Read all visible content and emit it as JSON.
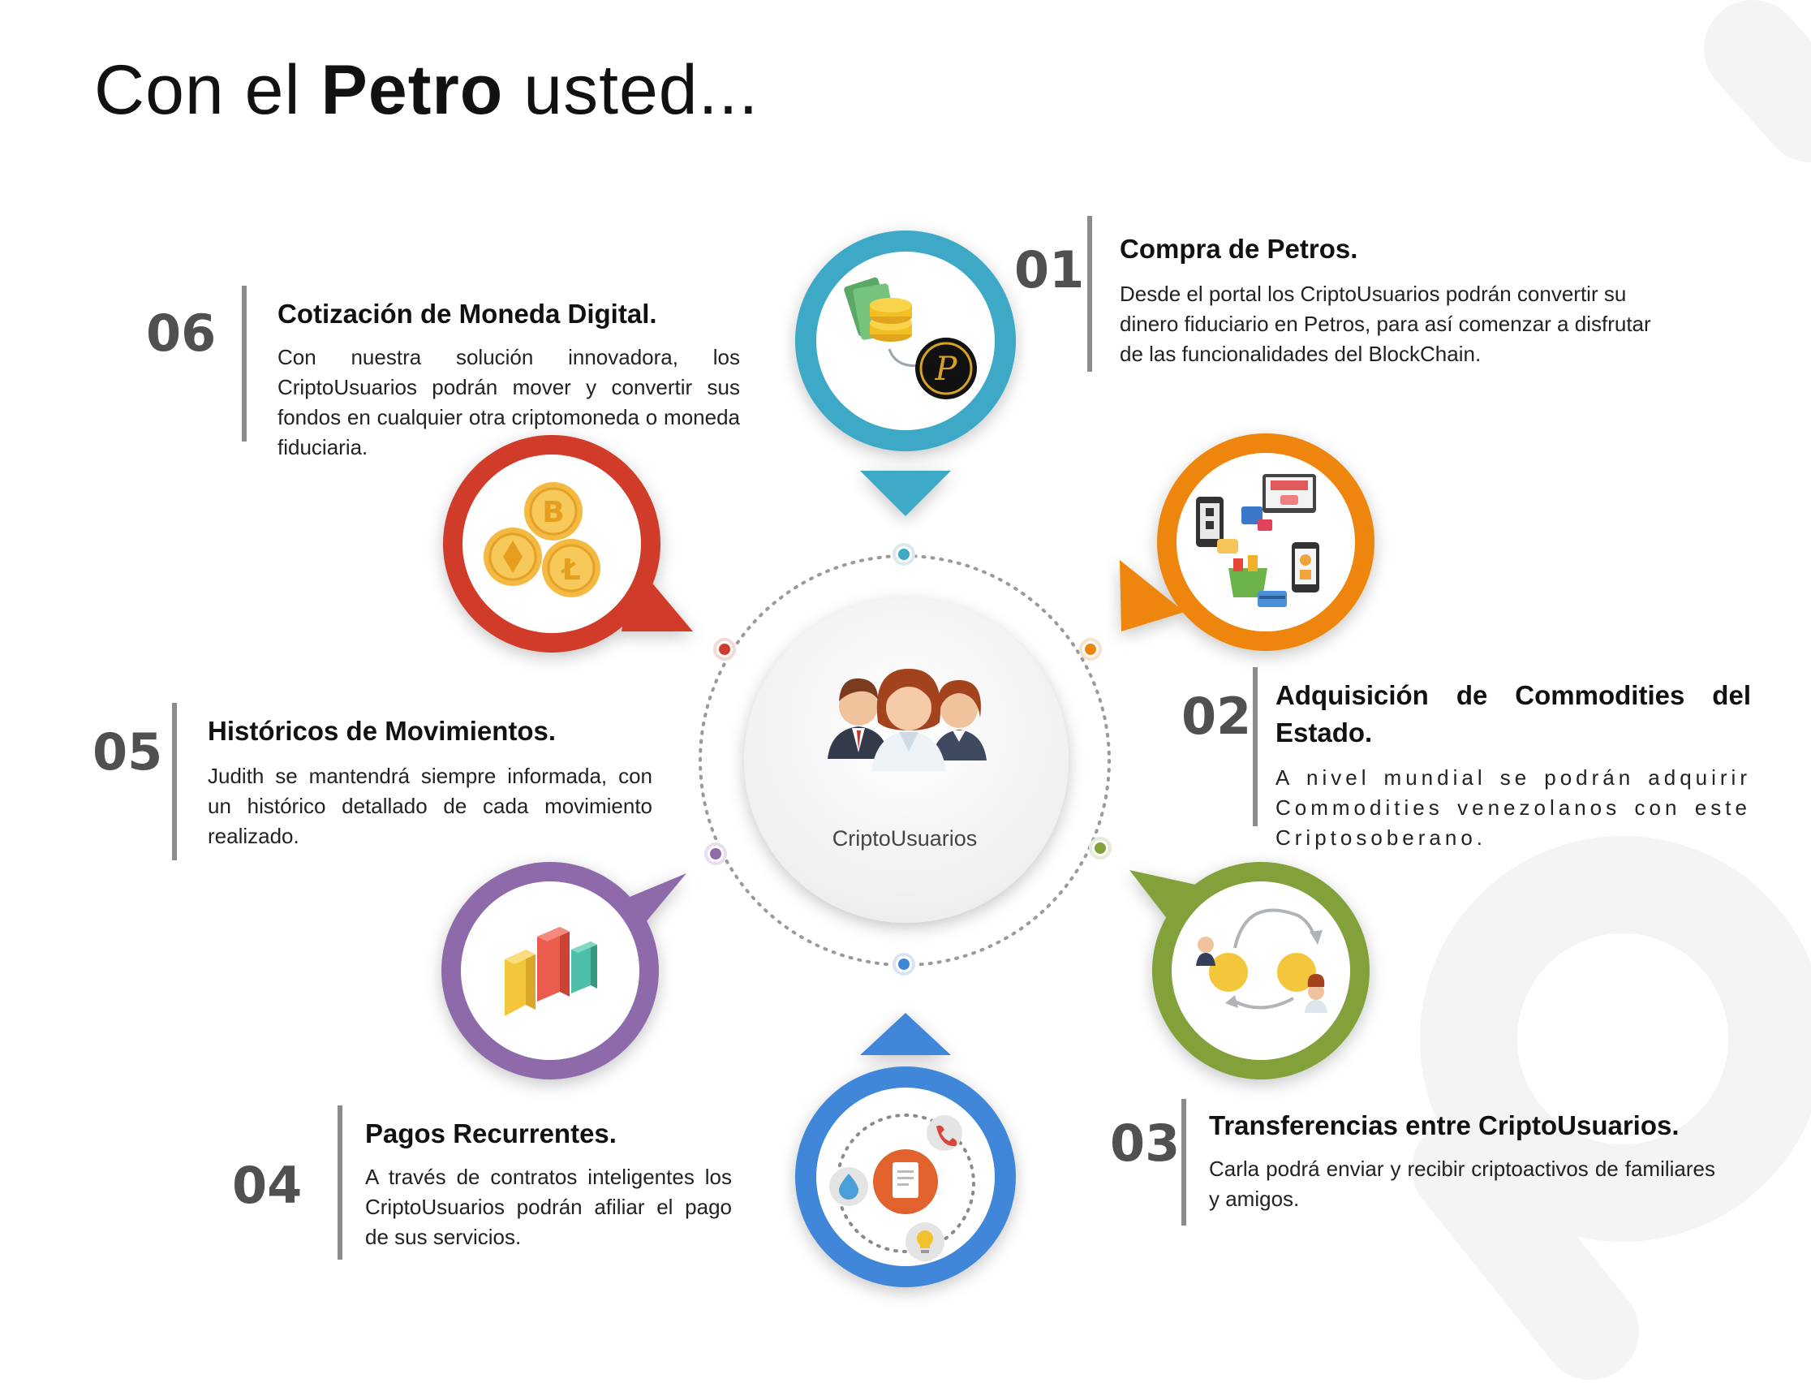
{
  "title": {
    "pre": "Con el ",
    "bold": "Petro",
    "post": " usted..."
  },
  "center": {
    "label": "CriptoUsuarios",
    "icon": "users-group-icon"
  },
  "items": [
    {
      "num": "01",
      "heading": "Compra de Petros.",
      "text": "Desde el portal los CriptoUsuarios podrán convertir su dinero fiduciario en Petros, para así comenzar a disfrutar de las funcionalidades del BlockChain.",
      "color": "#3ea9c6",
      "icon": "money-to-petro-icon"
    },
    {
      "num": "02",
      "heading": "Adquisición de Commodities del Estado.",
      "text": "A nivel mundial se podrán adquirir Commodities venezolanos con este Criptosoberano.",
      "color": "#ee8511",
      "icon": "ecommerce-shopping-icon"
    },
    {
      "num": "03",
      "heading": "Transferencias entre CriptoUsuarios.",
      "text": "Carla podrá enviar y recibir criptoactivos de familiares y amigos.",
      "color": "#82a13a",
      "icon": "coin-transfer-icon"
    },
    {
      "num": "04",
      "heading": "Pagos Recurrentes.",
      "text": "A través de contratos inteligentes los CriptoUsuarios podrán afiliar el pago de sus servicios.",
      "color": "#3f86d9",
      "icon": "services-contract-icon"
    },
    {
      "num": "05",
      "heading": "Históricos de Movimientos.",
      "text": "Judith se mantendrá siempre informada, con un histórico detallado de cada movimiento realizado.",
      "color": "#8e6bab",
      "icon": "bar-chart-icon"
    },
    {
      "num": "06",
      "heading": "Cotización de Moneda Digital.",
      "text": "Con nuestra solución innovadora, los CriptoUsuarios podrán mover y convertir sus fondos en cualquier otra criptomoneda o moneda fiduciaria.",
      "color": "#d13b2b",
      "icon": "crypto-coins-icon"
    }
  ]
}
